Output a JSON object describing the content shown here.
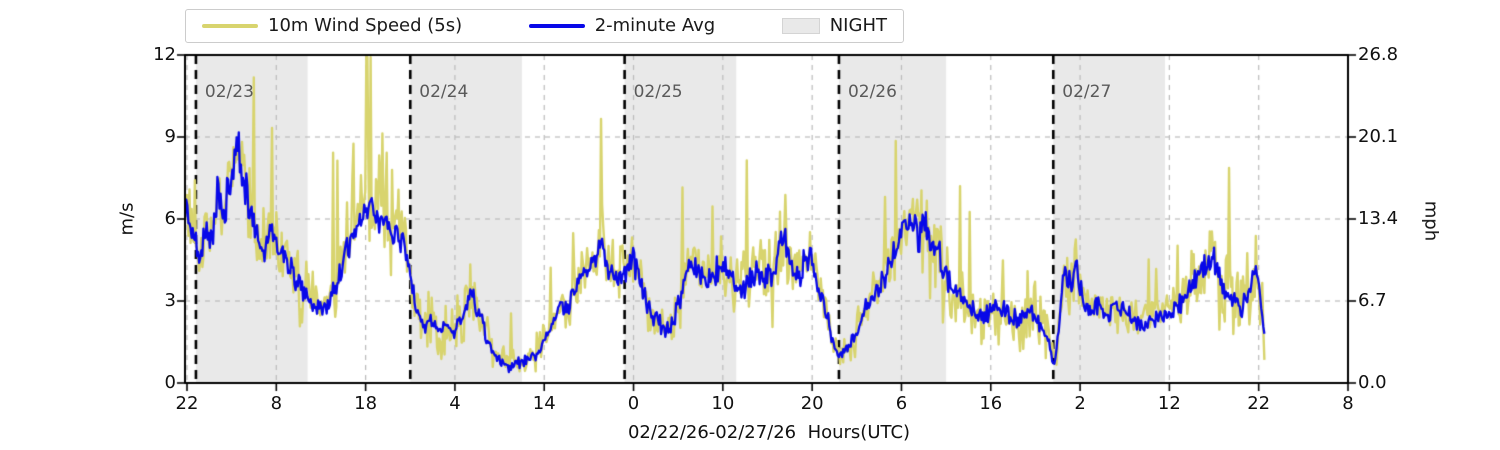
{
  "chart_data": {
    "type": "line",
    "title": "",
    "xlabel": "02/22/26-02/27/26  Hours(UTC)",
    "ylabel_left": "m/s",
    "ylabel_right": "mph",
    "ylim": [
      0,
      12
    ],
    "xlim_hours": [
      -0.25,
      130
    ],
    "grid": true,
    "legend_position": "top",
    "x_ticks": [
      {
        "hour": 0,
        "label": "22"
      },
      {
        "hour": 10,
        "label": "8"
      },
      {
        "hour": 20,
        "label": "18"
      },
      {
        "hour": 30,
        "label": "4"
      },
      {
        "hour": 40,
        "label": "14"
      },
      {
        "hour": 50,
        "label": "0"
      },
      {
        "hour": 60,
        "label": "10"
      },
      {
        "hour": 70,
        "label": "20"
      },
      {
        "hour": 80,
        "label": "6"
      },
      {
        "hour": 90,
        "label": "16"
      },
      {
        "hour": 100,
        "label": "2"
      },
      {
        "hour": 110,
        "label": "12"
      },
      {
        "hour": 120,
        "label": "22"
      },
      {
        "hour": 130,
        "label": "8"
      }
    ],
    "y_ticks_left": [
      {
        "v": 0,
        "label": "0"
      },
      {
        "v": 3,
        "label": "3"
      },
      {
        "v": 6,
        "label": "6"
      },
      {
        "v": 9,
        "label": "9"
      },
      {
        "v": 12,
        "label": "12"
      }
    ],
    "y_ticks_right": [
      {
        "v": 0,
        "label": "0.0"
      },
      {
        "v": 3,
        "label": "6.7"
      },
      {
        "v": 6,
        "label": "13.4"
      },
      {
        "v": 9,
        "label": "20.1"
      },
      {
        "v": 12,
        "label": "26.8"
      }
    ],
    "gridline_values": [
      3,
      6,
      9
    ],
    "day_lines": [
      {
        "hour": 1,
        "label": "02/23"
      },
      {
        "hour": 25,
        "label": "02/24"
      },
      {
        "hour": 49,
        "label": "02/25"
      },
      {
        "hour": 73,
        "label": "02/26"
      },
      {
        "hour": 97,
        "label": "02/27"
      }
    ],
    "night_bands": [
      [
        1,
        13.5
      ],
      [
        25,
        37.5
      ],
      [
        49,
        61.5
      ],
      [
        73,
        85.0
      ],
      [
        97,
        109.5
      ]
    ],
    "data_start_hour": -0.2,
    "data_end_hour": 120.7,
    "series": [
      {
        "name": "10m Wind Speed (5s)",
        "color": "#d8d46e",
        "role": "gust",
        "gust_base": 0.7,
        "gust_factor": 0.26,
        "gust_offset": 0.12,
        "spike_chance": 0.025
      },
      {
        "name": "2-minute Avg",
        "color": "#0808e8",
        "role": "average",
        "jitter_base": 0.18,
        "jitter_factor": 0.1,
        "keypoints": [
          [
            -0.2,
            6.8
          ],
          [
            0.4,
            5.6
          ],
          [
            1.2,
            4.8
          ],
          [
            2,
            5.4
          ],
          [
            2.6,
            4.9
          ],
          [
            3.4,
            6.9
          ],
          [
            4,
            6.1
          ],
          [
            4.8,
            7.3
          ],
          [
            5.7,
            8.8
          ],
          [
            6.4,
            7.2
          ],
          [
            7,
            6.6
          ],
          [
            7.8,
            5.3
          ],
          [
            8.6,
            4.9
          ],
          [
            9.4,
            5.7
          ],
          [
            10.2,
            5.0
          ],
          [
            11,
            4.8
          ],
          [
            12,
            3.8
          ],
          [
            13,
            3.4
          ],
          [
            14,
            2.9
          ],
          [
            15,
            2.6
          ],
          [
            16,
            3.1
          ],
          [
            17,
            3.9
          ],
          [
            18,
            5.0
          ],
          [
            19,
            5.7
          ],
          [
            20,
            6.3
          ],
          [
            20.6,
            7.0
          ],
          [
            21.3,
            5.8
          ],
          [
            22,
            6.2
          ],
          [
            22.8,
            5.5
          ],
          [
            23.6,
            5.8
          ],
          [
            24.4,
            4.9
          ],
          [
            25,
            3.9
          ],
          [
            25.7,
            2.6
          ],
          [
            26.5,
            2.1
          ],
          [
            27.3,
            2.3
          ],
          [
            28.1,
            1.9
          ],
          [
            29,
            2.2
          ],
          [
            30,
            1.9
          ],
          [
            31,
            2.4
          ],
          [
            31.8,
            3.2
          ],
          [
            32.6,
            2.6
          ],
          [
            33.4,
            1.8
          ],
          [
            34.2,
            1.1
          ],
          [
            35,
            0.8
          ],
          [
            36,
            0.6
          ],
          [
            37,
            0.7
          ],
          [
            38,
            0.8
          ],
          [
            39,
            1.0
          ],
          [
            40,
            1.6
          ],
          [
            41,
            2.2
          ],
          [
            41.8,
            3.0
          ],
          [
            42.6,
            2.7
          ],
          [
            43.4,
            3.4
          ],
          [
            44.2,
            3.9
          ],
          [
            45,
            4.2
          ],
          [
            45.8,
            4.6
          ],
          [
            46.5,
            5.0
          ],
          [
            47.2,
            4.3
          ],
          [
            48,
            3.8
          ],
          [
            49,
            4.1
          ],
          [
            50,
            4.5
          ],
          [
            50.8,
            3.6
          ],
          [
            51.6,
            2.8
          ],
          [
            52.4,
            2.4
          ],
          [
            53.2,
            2.1
          ],
          [
            54,
            1.9
          ],
          [
            54.8,
            2.6
          ],
          [
            55.6,
            3.6
          ],
          [
            56.4,
            4.4
          ],
          [
            57.2,
            4.1
          ],
          [
            58,
            3.8
          ],
          [
            59,
            4.1
          ],
          [
            60,
            4.2
          ],
          [
            61,
            3.7
          ],
          [
            62,
            3.4
          ],
          [
            63,
            3.9
          ],
          [
            64,
            4.1
          ],
          [
            65,
            3.8
          ],
          [
            66,
            4.3
          ],
          [
            66.8,
            5.5
          ],
          [
            67.4,
            4.5
          ],
          [
            68.2,
            3.8
          ],
          [
            69,
            4.3
          ],
          [
            69.8,
            4.8
          ],
          [
            70.6,
            3.7
          ],
          [
            71.4,
            2.7
          ],
          [
            72.2,
            1.8
          ],
          [
            73,
            0.9
          ],
          [
            73.8,
            1.2
          ],
          [
            74.5,
            1.5
          ],
          [
            75.2,
            1.9
          ],
          [
            76,
            2.8
          ],
          [
            77,
            3.2
          ],
          [
            78,
            3.9
          ],
          [
            79,
            4.6
          ],
          [
            80,
            5.3
          ],
          [
            81,
            6.0
          ],
          [
            82,
            5.4
          ],
          [
            82.8,
            5.8
          ],
          [
            83.5,
            5.2
          ],
          [
            84.3,
            4.6
          ],
          [
            85,
            3.9
          ],
          [
            86,
            3.3
          ],
          [
            87,
            2.9
          ],
          [
            88,
            2.6
          ],
          [
            89,
            2.3
          ],
          [
            90,
            2.6
          ],
          [
            91,
            2.9
          ],
          [
            92,
            2.5
          ],
          [
            93,
            2.3
          ],
          [
            94,
            2.7
          ],
          [
            95,
            2.4
          ],
          [
            96,
            2.0
          ],
          [
            96.6,
            1.4
          ],
          [
            97.1,
            0.5
          ],
          [
            97.7,
            2.4
          ],
          [
            98.2,
            4.4
          ],
          [
            99,
            3.5
          ],
          [
            99.6,
            4.1
          ],
          [
            100.4,
            3.1
          ],
          [
            101.2,
            2.6
          ],
          [
            102,
            3.0
          ],
          [
            103,
            2.4
          ],
          [
            104,
            2.8
          ],
          [
            105,
            2.6
          ],
          [
            106,
            2.3
          ],
          [
            107,
            2.1
          ],
          [
            108,
            2.4
          ],
          [
            109,
            2.6
          ],
          [
            110,
            2.5
          ],
          [
            111,
            2.9
          ],
          [
            112,
            3.2
          ],
          [
            113,
            3.9
          ],
          [
            114,
            4.3
          ],
          [
            114.8,
            4.6
          ],
          [
            115.6,
            3.8
          ],
          [
            116.4,
            3.3
          ],
          [
            117.2,
            3.0
          ],
          [
            118,
            2.7
          ],
          [
            118.9,
            3.5
          ],
          [
            119.6,
            4.1
          ],
          [
            120.2,
            3.2
          ],
          [
            120.7,
            1.6
          ]
        ]
      }
    ],
    "colors": {
      "night_shade": "#e9e9e9",
      "grid": "#bbbbbb",
      "day_line": "#000000",
      "spine": "#000000",
      "day_label_text": "#5a5a5a",
      "background": "#ffffff"
    }
  },
  "legend": {
    "night_label": "NIGHT"
  }
}
